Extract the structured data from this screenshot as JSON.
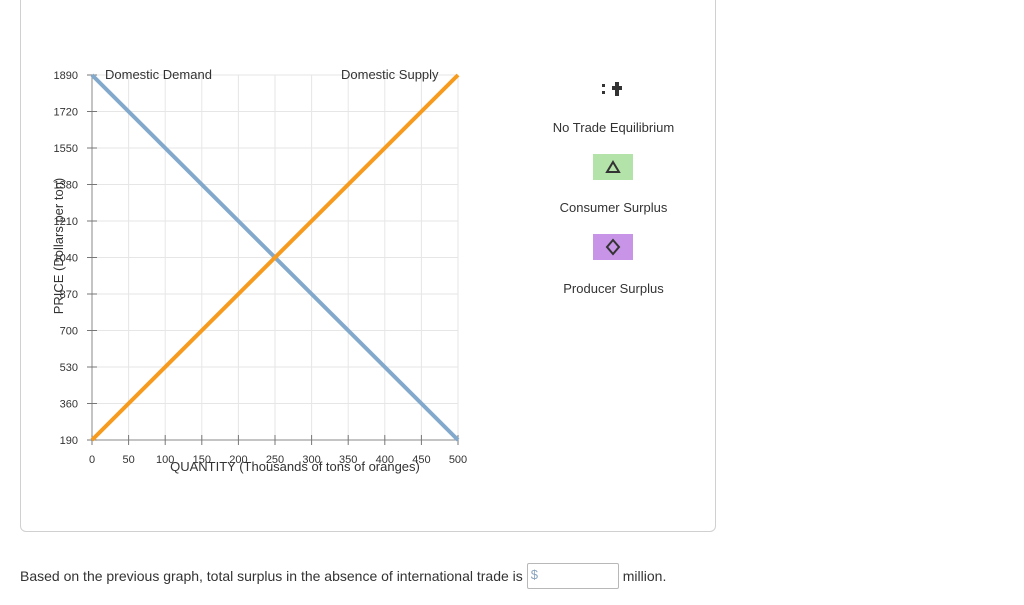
{
  "chart_data": {
    "type": "line",
    "title": "",
    "xlabel": "QUANTITY (Thousands of tons of oranges)",
    "ylabel": "PRICE (Dollars per ton)",
    "x_ticks": [
      0,
      50,
      100,
      150,
      200,
      250,
      300,
      350,
      400,
      450,
      500
    ],
    "y_ticks": [
      190,
      360,
      530,
      700,
      870,
      1040,
      1210,
      1380,
      1550,
      1720,
      1890
    ],
    "xlim": [
      0,
      500
    ],
    "ylim": [
      190,
      1890
    ],
    "grid": true,
    "series": [
      {
        "name": "Domestic Demand",
        "color": "#82a9cc",
        "x": [
          0,
          500
        ],
        "y": [
          1890,
          190
        ]
      },
      {
        "name": "Domestic Supply",
        "color": "#f79b1e",
        "x": [
          0,
          500
        ],
        "y": [
          190,
          1890
        ]
      }
    ]
  },
  "legend": {
    "items": [
      {
        "label": "No Trade Equilibrium",
        "icon": "plus-marker-icon"
      },
      {
        "label": "Consumer Surplus",
        "icon": "triangle-icon",
        "color": "#b3e3a9"
      },
      {
        "label": "Producer Surplus",
        "icon": "diamond-icon",
        "color": "#c794e8"
      }
    ]
  },
  "question": {
    "prefix": "Based on the previous graph, total surplus in the absence of international trade is",
    "currency_symbol": "$",
    "input_value": "",
    "suffix": "million."
  }
}
